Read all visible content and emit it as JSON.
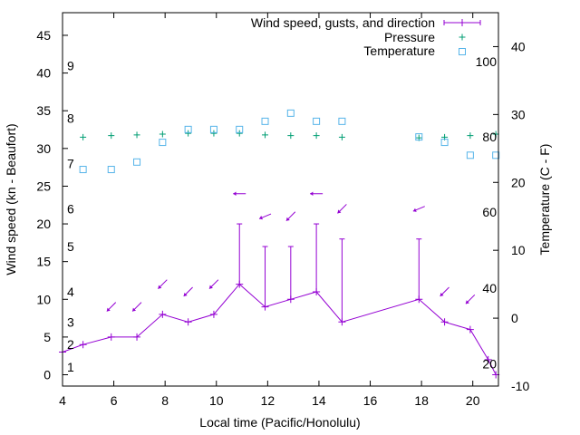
{
  "chart_data": {
    "type": "line",
    "title": "",
    "xlabel": "Local time (Pacific/Honolulu)",
    "ylabel": "Wind speed (kn - Beaufort)",
    "y2label": "Temperature (C - F)",
    "xlim": [
      4,
      21
    ],
    "ylim": [
      -1.5,
      48
    ],
    "y2lim": [
      -10,
      45
    ],
    "x_ticks": [
      "4",
      "6",
      "8",
      "10",
      "12",
      "14",
      "16",
      "18",
      "20"
    ],
    "y_ticks": [
      "0",
      "5",
      "10",
      "15",
      "20",
      "25",
      "30",
      "35",
      "40",
      "45"
    ],
    "y2_ticks": [
      "-10",
      "0",
      "10",
      "20",
      "30",
      "40"
    ],
    "beaufort_labels": [
      {
        "label": "1",
        "value": 1
      },
      {
        "label": "2",
        "value": 4
      },
      {
        "label": "3",
        "value": 7
      },
      {
        "label": "4",
        "value": 11
      },
      {
        "label": "5",
        "value": 17
      },
      {
        "label": "6",
        "value": 22
      },
      {
        "label": "7",
        "value": 28
      },
      {
        "label": "8",
        "value": 34
      },
      {
        "label": "9",
        "value": 41
      }
    ],
    "fahrenheit_labels": [
      {
        "label": "20",
        "value": -6.7
      },
      {
        "label": "40",
        "value": 4.4
      },
      {
        "label": "60",
        "value": 15.6
      },
      {
        "label": "80",
        "value": 26.7
      },
      {
        "label": "100",
        "value": 37.8
      }
    ],
    "legend": {
      "position": "top-right",
      "entries": [
        "Wind speed, gusts, and direction",
        "Pressure",
        "Temperature"
      ]
    },
    "series": [
      {
        "name": "Wind speed, gusts, and direction",
        "color": "#9400d3",
        "x": [
          4,
          4.8,
          5.9,
          6.9,
          7.9,
          8.9,
          9.9,
          10.9,
          11.9,
          12.9,
          13.9,
          14.9,
          17.9,
          18.9,
          19.9,
          20.6,
          20.9
        ],
        "values": [
          3,
          4,
          5,
          5,
          8,
          7,
          8,
          12,
          9,
          10,
          11,
          7,
          10,
          7,
          6,
          2,
          0
        ],
        "gusts": [
          {
            "x": 10.9,
            "value": 20
          },
          {
            "x": 11.9,
            "value": 17
          },
          {
            "x": 12.9,
            "value": 17
          },
          {
            "x": 13.9,
            "value": 20
          },
          {
            "x": 14.9,
            "value": 18
          },
          {
            "x": 17.9,
            "value": 18
          }
        ],
        "direction_arrows": [
          {
            "x": 5.9,
            "wind_value": 9,
            "direction": "SW"
          },
          {
            "x": 6.9,
            "wind_value": 9,
            "direction": "SW"
          },
          {
            "x": 7.9,
            "wind_value": 12,
            "direction": "SW"
          },
          {
            "x": 8.9,
            "wind_value": 11,
            "direction": "SW"
          },
          {
            "x": 9.9,
            "wind_value": 12,
            "direction": "SW"
          },
          {
            "x": 10.9,
            "wind_value": 24,
            "direction": "W"
          },
          {
            "x": 11.9,
            "wind_value": 21,
            "direction": "WSW"
          },
          {
            "x": 12.9,
            "wind_value": 21,
            "direction": "SW"
          },
          {
            "x": 13.9,
            "wind_value": 24,
            "direction": "W"
          },
          {
            "x": 14.9,
            "wind_value": 22,
            "direction": "SW"
          },
          {
            "x": 17.9,
            "wind_value": 22,
            "direction": "WSW"
          },
          {
            "x": 18.9,
            "wind_value": 11,
            "direction": "SW"
          },
          {
            "x": 19.9,
            "wind_value": 10,
            "direction": "SW"
          }
        ]
      },
      {
        "name": "Pressure",
        "color": "#009e73",
        "axis": "left",
        "x": [
          4.8,
          5.9,
          6.9,
          7.9,
          8.9,
          9.9,
          10.9,
          11.9,
          12.9,
          13.9,
          14.9,
          17.9,
          18.9,
          19.9,
          20.9
        ],
        "values": [
          31.5,
          31.7,
          31.8,
          31.9,
          32,
          32,
          32,
          31.8,
          31.7,
          31.7,
          31.5,
          31.4,
          31.5,
          31.7,
          31.9
        ]
      },
      {
        "name": "Temperature",
        "color": "#56b4e9",
        "axis": "right",
        "x": [
          4.8,
          5.9,
          6.9,
          7.9,
          8.9,
          9.9,
          10.9,
          11.9,
          12.9,
          13.9,
          14.9,
          17.9,
          18.9,
          19.9,
          20.9
        ],
        "values": [
          21.9,
          21.9,
          23,
          25.9,
          27.8,
          27.8,
          27.8,
          29,
          30.2,
          29,
          29,
          26.7,
          25.9,
          24,
          24
        ]
      }
    ]
  }
}
